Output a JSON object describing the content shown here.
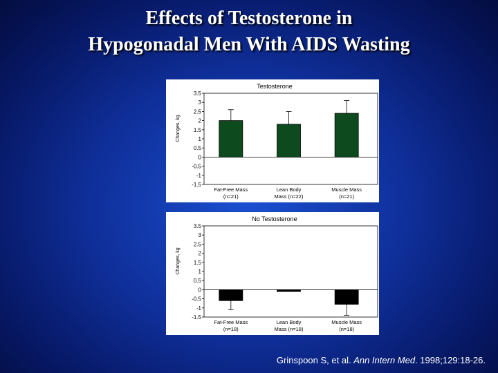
{
  "slide": {
    "title_line1": "Effects of Testosterone in",
    "title_line2": "Hypogonadal Men With AIDS Wasting",
    "citation_authors": "Grinspoon S, et al. ",
    "citation_journal": "Ann Intern Med",
    "citation_rest": ". 1998;129:18-26."
  },
  "colors": {
    "background": "#0f2f9a",
    "testosterone_bar": "#0d4a1e",
    "no_testosterone_bar": "#000000"
  },
  "chart_data": [
    {
      "type": "bar",
      "title": "Testosterone",
      "ylabel": "Changes, kg",
      "categories": [
        [
          "Fat-Free Mass",
          "(n=21)"
        ],
        [
          "Lean Body",
          "Mass (n=22)"
        ],
        [
          "Muscle Mass",
          "(n=21)"
        ]
      ],
      "values": [
        2.0,
        1.8,
        2.4
      ],
      "error": [
        0.6,
        0.7,
        0.7
      ],
      "ylim": [
        -1.5,
        3.5
      ],
      "yticks": [
        "3.5",
        "3",
        "2.5",
        "2",
        "1.5",
        "1",
        "0.5",
        "0",
        "-0.5",
        "-1",
        "-1.5"
      ],
      "bar_color": "#0d4a1e",
      "grid": false
    },
    {
      "type": "bar",
      "title": "No Testosterone",
      "ylabel": "Changes, kg",
      "categories": [
        [
          "Fat-Free Mass",
          "(n=18)"
        ],
        [
          "Lean Body",
          "Mass (n=18)"
        ],
        [
          "Muscle Mass",
          "(n=18)"
        ]
      ],
      "values": [
        -0.6,
        -0.1,
        -0.8
      ],
      "error": [
        0.5,
        0.0,
        0.6
      ],
      "ylim": [
        -1.5,
        3.5
      ],
      "yticks": [
        "3.5",
        "3",
        "2.5",
        "2",
        "1.5",
        "1",
        "0.5",
        "0",
        "-0.5",
        "-1",
        "-1.5"
      ],
      "bar_color": "#000000",
      "grid": false
    }
  ]
}
